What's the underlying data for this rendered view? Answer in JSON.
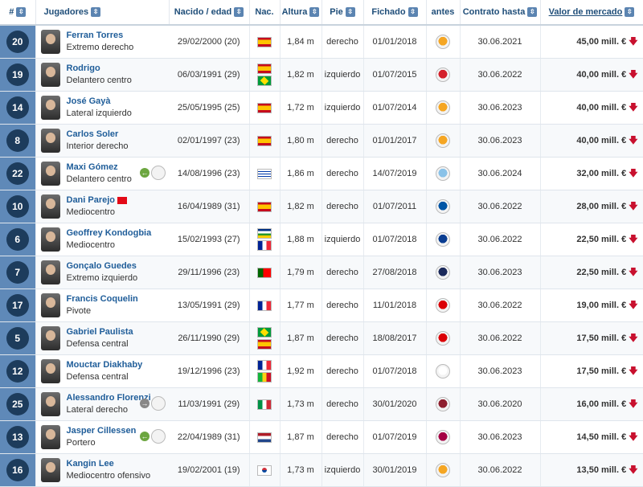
{
  "headers": {
    "num": "#",
    "jugadores": "Jugadores",
    "nacido": "Nacido / edad",
    "nac": "Nac.",
    "altura": "Altura",
    "pie": "Pie",
    "fichado": "Fichado",
    "antes": "antes",
    "contrato": "Contrato hasta",
    "valor": "Valor de mercado"
  },
  "icons": {
    "sort": "sort-arrow-icon",
    "value_down": "red-down-arrow-icon",
    "loan": "loan-arrow-icon"
  },
  "players": [
    {
      "num": "20",
      "name": "Ferran Torres",
      "position": "Extremo derecho",
      "born": "29/02/2000 (20)",
      "nat": [
        "es"
      ],
      "height": "1,84 m",
      "foot": "derecho",
      "joined": "01/01/2018",
      "prev_club": "Valencia",
      "contract": "30.06.2021",
      "value": "45,00 mill. €"
    },
    {
      "num": "19",
      "name": "Rodrigo",
      "position": "Delantero centro",
      "born": "06/03/1991 (29)",
      "nat": [
        "es",
        "br"
      ],
      "height": "1,82 m",
      "foot": "izquierdo",
      "joined": "01/07/2015",
      "prev_club": "Benfica",
      "contract": "30.06.2022",
      "value": "40,00 mill. €"
    },
    {
      "num": "14",
      "name": "José Gayà",
      "position": "Lateral izquierdo",
      "born": "25/05/1995 (25)",
      "nat": [
        "es"
      ],
      "height": "1,72 m",
      "foot": "izquierdo",
      "joined": "01/07/2014",
      "prev_club": "Valencia",
      "contract": "30.06.2023",
      "value": "40,00 mill. €"
    },
    {
      "num": "8",
      "name": "Carlos Soler",
      "position": "Interior derecho",
      "born": "02/01/1997 (23)",
      "nat": [
        "es"
      ],
      "height": "1,80 m",
      "foot": "derecho",
      "joined": "01/01/2017",
      "prev_club": "Valencia",
      "contract": "30.06.2023",
      "value": "40,00 mill. €"
    },
    {
      "num": "22",
      "name": "Maxi Gómez",
      "position": "Delantero centro",
      "born": "14/08/1996 (23)",
      "nat": [
        "uy"
      ],
      "height": "1,86 m",
      "foot": "derecho",
      "joined": "14/07/2019",
      "prev_club": "Celta",
      "contract": "30.06.2024",
      "value": "32,00 mill. €",
      "extra": "loan"
    },
    {
      "num": "10",
      "name": "Dani Parejo",
      "position": "Mediocentro",
      "born": "16/04/1989 (31)",
      "nat": [
        "es"
      ],
      "height": "1,82 m",
      "foot": "derecho",
      "joined": "01/07/2011",
      "prev_club": "Getafe",
      "contract": "30.06.2022",
      "value": "28,00 mill. €",
      "badge": "tr"
    },
    {
      "num": "6",
      "name": "Geoffrey Kondogbia",
      "position": "Mediocentro",
      "born": "15/02/1993 (27)",
      "nat": [
        "cf",
        "fr"
      ],
      "height": "1,88 m",
      "foot": "izquierdo",
      "joined": "01/07/2018",
      "prev_club": "Inter",
      "contract": "30.06.2022",
      "value": "22,50 mill. €"
    },
    {
      "num": "7",
      "name": "Gonçalo Guedes",
      "position": "Extremo izquierdo",
      "born": "29/11/1996 (23)",
      "nat": [
        "pt"
      ],
      "height": "1,79 m",
      "foot": "derecho",
      "joined": "27/08/2018",
      "prev_club": "PSG",
      "contract": "30.06.2023",
      "value": "22,50 mill. €"
    },
    {
      "num": "17",
      "name": "Francis Coquelin",
      "position": "Pivote",
      "born": "13/05/1991 (29)",
      "nat": [
        "fr"
      ],
      "height": "1,77 m",
      "foot": "derecho",
      "joined": "11/01/2018",
      "prev_club": "Arsenal",
      "contract": "30.06.2022",
      "value": "19,00 mill. €"
    },
    {
      "num": "5",
      "name": "Gabriel Paulista",
      "position": "Defensa central",
      "born": "26/11/1990 (29)",
      "nat": [
        "br",
        "es"
      ],
      "height": "1,87 m",
      "foot": "derecho",
      "joined": "18/08/2017",
      "prev_club": "Arsenal",
      "contract": "30.06.2022",
      "value": "17,50 mill. €"
    },
    {
      "num": "12",
      "name": "Mouctar Diakhaby",
      "position": "Defensa central",
      "born": "19/12/1996 (23)",
      "nat": [
        "fr",
        "ml"
      ],
      "height": "1,92 m",
      "foot": "derecho",
      "joined": "01/07/2018",
      "prev_club": "Lyon",
      "contract": "30.06.2023",
      "value": "17,50 mill. €"
    },
    {
      "num": "25",
      "name": "Alessandro Florenzi",
      "position": "Lateral derecho",
      "born": "11/03/1991 (29)",
      "nat": [
        "it"
      ],
      "height": "1,73 m",
      "foot": "derecho",
      "joined": "30/01/2020",
      "prev_club": "Roma",
      "contract": "30.06.2020",
      "value": "16,00 mill. €",
      "extra": "loan-out"
    },
    {
      "num": "13",
      "name": "Jasper Cillessen",
      "position": "Portero",
      "born": "22/04/1989 (31)",
      "nat": [
        "nl"
      ],
      "height": "1,87 m",
      "foot": "derecho",
      "joined": "01/07/2019",
      "prev_club": "Barcelona",
      "contract": "30.06.2023",
      "value": "14,50 mill. €",
      "extra": "loan"
    },
    {
      "num": "16",
      "name": "Kangin Lee",
      "position": "Mediocentro ofensivo",
      "born": "19/02/2001 (19)",
      "nat": [
        "kr"
      ],
      "height": "1,73 m",
      "foot": "izquierdo",
      "joined": "30/01/2019",
      "prev_club": "Valencia",
      "contract": "30.06.2022",
      "value": "13,50 mill. €"
    }
  ],
  "club_colors": {
    "Valencia": "#f5a623",
    "Benfica": "#d4202b",
    "Celta": "#8ac2e8",
    "Getafe": "#0055a5",
    "Inter": "#0a3d91",
    "PSG": "#1b2a5b",
    "Arsenal": "#db0007",
    "Lyon": "#ffffff",
    "Roma": "#8e1f2f",
    "Barcelona": "#a50044"
  }
}
